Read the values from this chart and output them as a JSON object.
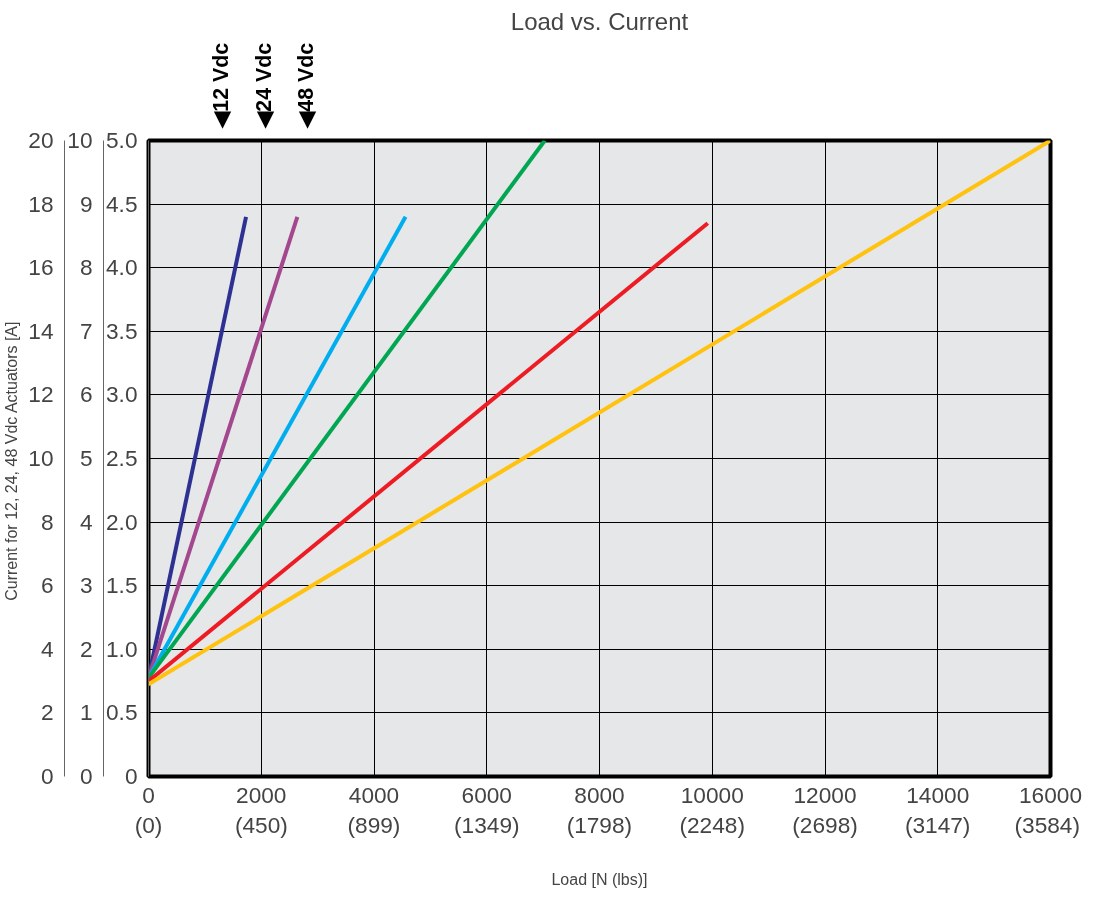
{
  "chart_data": {
    "type": "line",
    "title": "Load vs. Current",
    "xlabel": "Load [N (lbs)]",
    "ylabel": "Current for 12, 24, 48 Vdc Actuators  [A]",
    "annotations": [
      "◀12 Vdc",
      "◀24 Vdc",
      "◀48 Vdc"
    ],
    "xlim": [
      0,
      16000
    ],
    "xticks": [
      0,
      2000,
      4000,
      6000,
      8000,
      10000,
      12000,
      14000,
      16000
    ],
    "x2lim": [
      0,
      3597
    ],
    "x2ticks": [
      {
        "value": 0,
        "label": "(0)"
      },
      {
        "value": 450,
        "label": "(450)"
      },
      {
        "value": 899,
        "label": "(899)"
      },
      {
        "value": 1349,
        "label": "(1349)"
      },
      {
        "value": 1798,
        "label": "(1798)"
      },
      {
        "value": 2248,
        "label": "(2248)"
      },
      {
        "value": 2698,
        "label": "(2698)"
      },
      {
        "value": 3147,
        "label": "(3147)"
      },
      {
        "value": 3584,
        "label": "(3584)"
      }
    ],
    "ylim": [
      0,
      20
    ],
    "yticks": [
      0,
      2,
      4,
      6,
      8,
      10,
      12,
      14,
      16,
      18,
      20
    ],
    "y2lim": [
      0,
      10
    ],
    "y2ticks": [
      0,
      1,
      2,
      3,
      4,
      5,
      6,
      7,
      8,
      9,
      10
    ],
    "y3lim": [
      0,
      5
    ],
    "y3ticks": [
      {
        "value": 0,
        "label": "0"
      },
      {
        "value": 0.5,
        "label": "0.5"
      },
      {
        "value": 1,
        "label": "1.0"
      },
      {
        "value": 1.5,
        "label": "1.5"
      },
      {
        "value": 2,
        "label": "2.0"
      },
      {
        "value": 2.5,
        "label": "2.5"
      },
      {
        "value": 3,
        "label": "3.0"
      },
      {
        "value": 3.5,
        "label": "3.5"
      },
      {
        "value": 4,
        "label": "4.0"
      },
      {
        "value": 4.5,
        "label": "4.5"
      },
      {
        "value": 5,
        "label": "5.0"
      }
    ],
    "grid": true,
    "line_style": "solid",
    "series": [
      {
        "color": "#2e3192",
        "x": [
          0,
          1730
        ],
        "values": [
          3.1,
          17.6
        ]
      },
      {
        "color": "#a3478f",
        "x": [
          0,
          2640
        ],
        "values": [
          3.1,
          17.6
        ]
      },
      {
        "color": "#00aeef",
        "x": [
          0,
          4560
        ],
        "values": [
          3.1,
          17.6
        ]
      },
      {
        "color": "#00a651",
        "x": [
          0,
          7030
        ],
        "values": [
          3.1,
          20
        ]
      },
      {
        "color": "#ed1c24",
        "x": [
          0,
          9920
        ],
        "values": [
          3.0,
          17.4
        ]
      },
      {
        "color": "#ffc20e",
        "x": [
          0,
          16000
        ],
        "values": [
          2.9,
          20
        ]
      }
    ]
  }
}
